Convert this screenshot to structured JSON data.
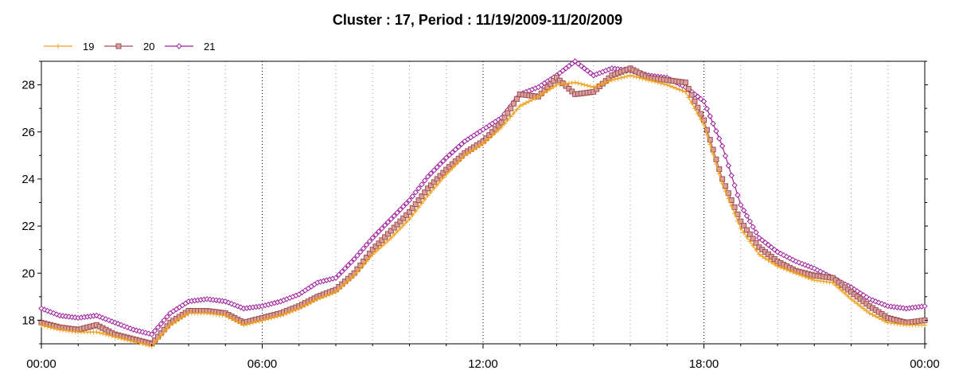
{
  "chart_data": {
    "type": "line",
    "title": "Cluster : 17, Period : 11/19/2009-11/20/2009",
    "xlabel": "",
    "ylabel": "",
    "x_tick_labels": [
      "00:00",
      "06:00",
      "12:00",
      "18:00",
      "00:00"
    ],
    "x_range_hours": [
      0,
      24
    ],
    "y_range": [
      17,
      29
    ],
    "y_ticks": [
      18,
      20,
      22,
      24,
      26,
      28
    ],
    "grid": true,
    "legend_position": "top-left",
    "x_hours": [
      0,
      0.5,
      1,
      1.5,
      2,
      2.5,
      3,
      3.5,
      4,
      4.5,
      5,
      5.5,
      6,
      6.5,
      7,
      7.5,
      8,
      8.5,
      9,
      9.5,
      10,
      10.5,
      11,
      11.5,
      12,
      12.5,
      13,
      13.5,
      14,
      14.5,
      15,
      15.5,
      16,
      16.5,
      17,
      17.5,
      18,
      18.5,
      19,
      19.5,
      20,
      20.5,
      21,
      21.5,
      22,
      22.5,
      23,
      23.5,
      24
    ],
    "series": [
      {
        "name": "19",
        "color": "#f0a020",
        "marker": "plus",
        "values": [
          17.8,
          17.6,
          17.5,
          17.5,
          17.3,
          17.1,
          16.9,
          17.8,
          18.3,
          18.3,
          18.2,
          17.8,
          18.0,
          18.2,
          18.5,
          18.9,
          19.2,
          19.9,
          20.8,
          21.5,
          22.3,
          23.3,
          24.2,
          25.0,
          25.5,
          26.2,
          27.1,
          27.5,
          28.0,
          28.1,
          27.9,
          28.2,
          28.4,
          28.2,
          28.0,
          27.7,
          26.3,
          23.8,
          21.9,
          20.8,
          20.3,
          20.0,
          19.7,
          19.6,
          18.9,
          18.3,
          17.9,
          17.8,
          17.8
        ]
      },
      {
        "name": "20",
        "color": "#a05050",
        "marker": "square",
        "values": [
          17.9,
          17.7,
          17.6,
          17.8,
          17.4,
          17.2,
          17.0,
          17.9,
          18.4,
          18.4,
          18.3,
          17.9,
          18.1,
          18.3,
          18.6,
          19.0,
          19.3,
          20.0,
          21.0,
          21.8,
          22.6,
          23.6,
          24.4,
          25.1,
          25.6,
          26.4,
          27.6,
          27.5,
          28.3,
          27.6,
          27.7,
          28.4,
          28.7,
          28.3,
          28.2,
          28.1,
          26.5,
          24.0,
          22.2,
          21.1,
          20.5,
          20.1,
          19.9,
          19.8,
          19.2,
          18.6,
          18.1,
          17.9,
          18.0
        ]
      },
      {
        "name": "21",
        "color": "#a020a0",
        "marker": "diamond",
        "values": [
          18.5,
          18.2,
          18.1,
          18.2,
          17.9,
          17.6,
          17.4,
          18.3,
          18.8,
          18.9,
          18.8,
          18.5,
          18.6,
          18.8,
          19.1,
          19.6,
          19.8,
          20.6,
          21.5,
          22.3,
          23.1,
          24.1,
          24.9,
          25.6,
          26.1,
          26.6,
          27.6,
          27.9,
          28.4,
          29.0,
          28.4,
          28.7,
          28.6,
          28.4,
          28.3,
          27.9,
          27.3,
          25.4,
          22.9,
          21.5,
          20.9,
          20.5,
          20.2,
          19.8,
          19.4,
          18.9,
          18.6,
          18.5,
          18.6
        ]
      }
    ]
  }
}
